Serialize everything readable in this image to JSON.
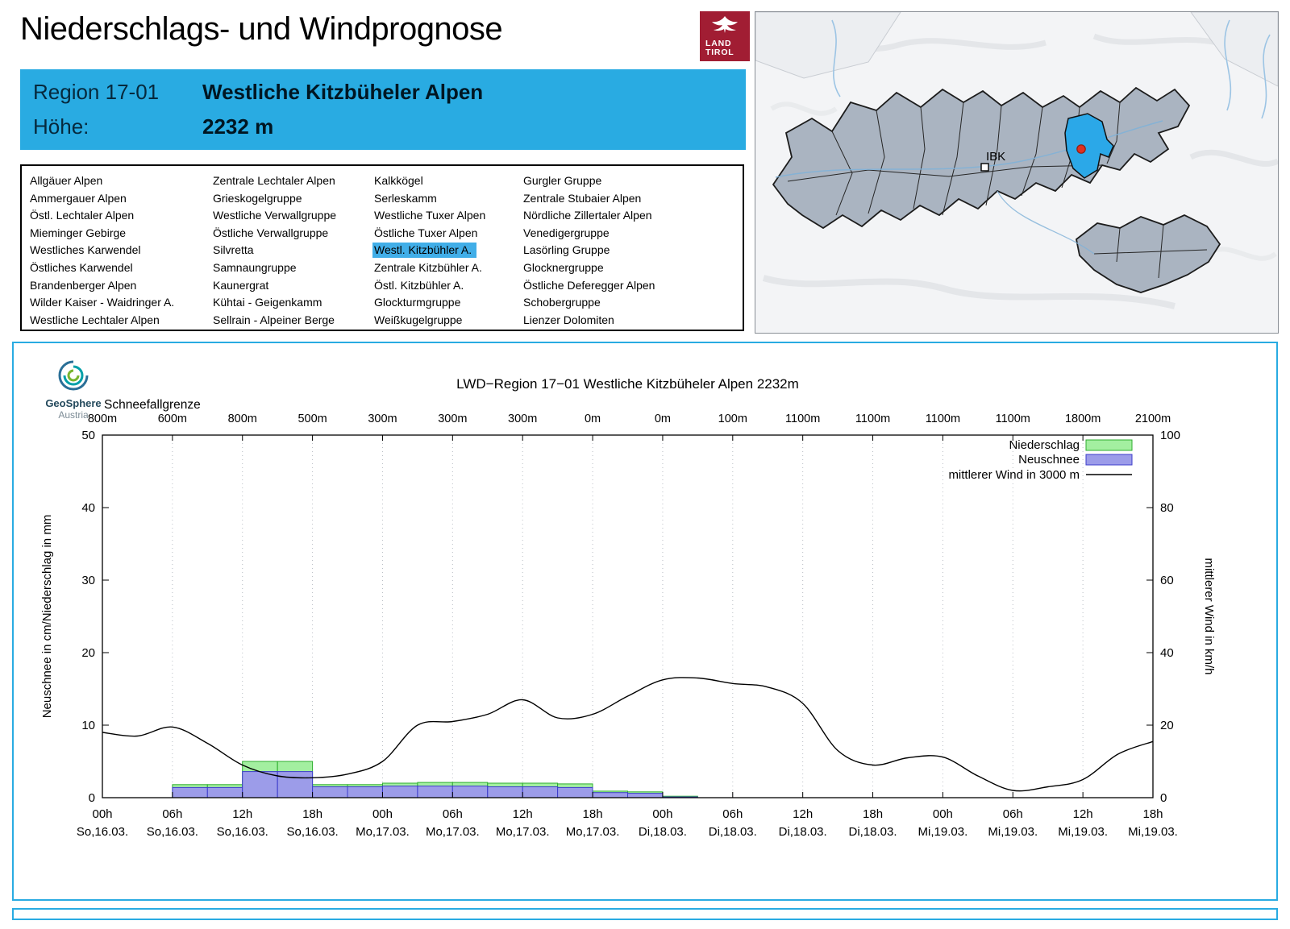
{
  "header": {
    "title": "Niederschlags- und Windprognose",
    "logo": {
      "line1": "LAND",
      "line2": "TIROL"
    }
  },
  "region_box": {
    "region_label": "Region 17-01",
    "region_name": "Westliche Kitzbüheler Alpen",
    "altitude_label": "Höhe:",
    "altitude_value": "2232 m"
  },
  "region_list": {
    "selected": "Westl. Kitzbühler A.",
    "columns": [
      [
        "Allgäuer Alpen",
        "Ammergauer Alpen",
        "Östl. Lechtaler Alpen",
        "Mieminger Gebirge",
        "Westliches Karwendel",
        "Östliches Karwendel",
        "Brandenberger Alpen",
        "Wilder Kaiser - Waidringer A.",
        "Westliche Lechtaler Alpen"
      ],
      [
        "Zentrale Lechtaler Alpen",
        "Grieskogelgruppe",
        "Westliche Verwallgruppe",
        "Östliche Verwallgruppe",
        "Silvretta",
        "Samnaungruppe",
        "Kaunergrat",
        "Kühtai - Geigenkamm",
        "Sellrain - Alpeiner Berge"
      ],
      [
        "Kalkkögel",
        "Serleskamm",
        "Westliche Tuxer Alpen",
        "Östliche Tuxer Alpen",
        "Westl. Kitzbühler A.",
        "Zentrale Kitzbühler A.",
        "Östl. Kitzbühler A.",
        "Glockturmgruppe",
        "Weißkugelgruppe"
      ],
      [
        "Gurgler Gruppe",
        "Zentrale Stubaier Alpen",
        "Nördliche Zillertaler Alpen",
        "Venedigergruppe",
        "Lasörling Gruppe",
        "Glocknergruppe",
        "Östliche Deferegger Alpen",
        "Schobergruppe",
        "Lienzer Dolomiten"
      ]
    ]
  },
  "map": {
    "city_label": "IBK"
  },
  "geosphere": {
    "name": "GeoSphere",
    "country": "Austria"
  },
  "chart_data": {
    "type": "bar+line",
    "title": "LWD−Region 17−01 Westliche Kitzbüheler Alpen 2232m",
    "snowline_label": "Schneefallgrenze",
    "snowline_values": [
      "800m",
      "600m",
      "800m",
      "500m",
      "300m",
      "300m",
      "300m",
      "0m",
      "0m",
      "100m",
      "1100m",
      "1100m",
      "1100m",
      "1100m",
      "1800m",
      "2100m"
    ],
    "x_ticks": [
      {
        "time": "00h",
        "date": "So,16.03."
      },
      {
        "time": "06h",
        "date": "So,16.03."
      },
      {
        "time": "12h",
        "date": "So,16.03."
      },
      {
        "time": "18h",
        "date": "So,16.03."
      },
      {
        "time": "00h",
        "date": "Mo,17.03."
      },
      {
        "time": "06h",
        "date": "Mo,17.03."
      },
      {
        "time": "12h",
        "date": "Mo,17.03."
      },
      {
        "time": "18h",
        "date": "Mo,17.03."
      },
      {
        "time": "00h",
        "date": "Di,18.03."
      },
      {
        "time": "06h",
        "date": "Di,18.03."
      },
      {
        "time": "12h",
        "date": "Di,18.03."
      },
      {
        "time": "18h",
        "date": "Di,18.03."
      },
      {
        "time": "00h",
        "date": "Mi,19.03."
      },
      {
        "time": "06h",
        "date": "Mi,19.03."
      },
      {
        "time": "12h",
        "date": "Mi,19.03."
      },
      {
        "time": "18h",
        "date": "Mi,19.03."
      }
    ],
    "ylabel_left": "Neuschnee in cm/Niederschlag in mm",
    "ylabel_right": "mittlerer Wind in km/h",
    "ylim_left": [
      0,
      50
    ],
    "ylim_right": [
      0,
      100
    ],
    "y_ticks_left": [
      0,
      10,
      20,
      30,
      40,
      50
    ],
    "y_ticks_right": [
      0,
      20,
      40,
      60,
      80,
      100
    ],
    "total_hours": 90,
    "bar_interval_h": 3,
    "niederschlag_mm": [
      0,
      0,
      1.8,
      1.8,
      5,
      5,
      1.8,
      1.8,
      2,
      2.1,
      2.1,
      2,
      2,
      1.9,
      0.9,
      0.8,
      0.2,
      0,
      0,
      0,
      0,
      0,
      0,
      0,
      0,
      0,
      0,
      0,
      0,
      0
    ],
    "neuschnee_cm": [
      0,
      0,
      1.4,
      1.4,
      3.6,
      3.6,
      1.5,
      1.5,
      1.6,
      1.6,
      1.6,
      1.5,
      1.5,
      1.4,
      0.7,
      0.6,
      0.1,
      0,
      0,
      0,
      0,
      0,
      0,
      0,
      0,
      0,
      0,
      0,
      0,
      0
    ],
    "wind_kmh": {
      "interval_h": 3,
      "values": [
        18,
        17,
        19.5,
        15,
        9,
        6,
        5.5,
        6.5,
        10,
        20,
        21,
        23,
        27,
        22,
        23,
        28,
        32.5,
        33,
        31.5,
        30.5,
        26,
        13,
        9,
        11,
        11.2,
        6,
        2,
        3,
        5,
        12,
        15.5
      ]
    },
    "legend": [
      {
        "label": "Niederschlag",
        "type": "box",
        "color": "#a3efa0",
        "border": "#2fae2f"
      },
      {
        "label": "Neuschnee",
        "type": "box",
        "color": "#9c9ce9",
        "border": "#3d3dcb"
      },
      {
        "label": "mittlerer Wind in 3000 m",
        "type": "line",
        "color": "#000000"
      }
    ],
    "colors": {
      "accent_blue": "#29abe2",
      "grid": "#b9bec4"
    }
  }
}
